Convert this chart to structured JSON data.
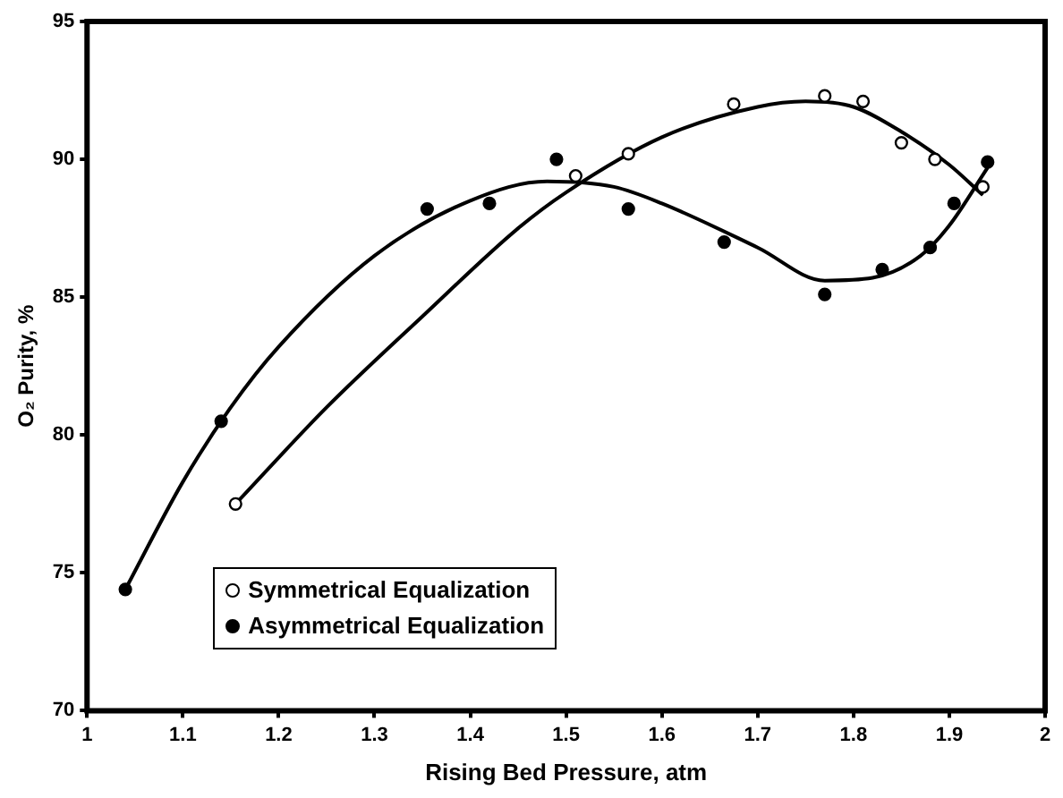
{
  "chart_data": {
    "type": "scatter",
    "xlabel": "Rising Bed Pressure, atm",
    "ylabel": "O₂ Purity, %",
    "xlim": [
      1,
      2
    ],
    "xticks": [
      1,
      1.1,
      1.2,
      1.3,
      1.4,
      1.5,
      1.6,
      1.7,
      1.8,
      1.9,
      2
    ],
    "ylim": [
      70,
      95
    ],
    "yticks": [
      70,
      75,
      80,
      85,
      90,
      95
    ],
    "grid": false,
    "legend": "bottom left",
    "marker": "circle",
    "series": [
      {
        "name": "Symmetrical Equalization",
        "color": "#ffffff",
        "x": [
          1.155,
          1.51,
          1.565,
          1.675,
          1.77,
          1.81,
          1.85,
          1.885,
          1.935
        ],
        "values": [
          77.5,
          89.4,
          90.2,
          92.0,
          92.3,
          92.1,
          90.6,
          90.0,
          89.0
        ]
      },
      {
        "name": "Asymmetrical Equalization",
        "color": "#000000",
        "x": [
          1.04,
          1.14,
          1.355,
          1.42,
          1.49,
          1.565,
          1.665,
          1.77,
          1.83,
          1.88,
          1.905,
          1.94
        ],
        "values": [
          74.4,
          80.5,
          88.2,
          88.4,
          90.0,
          88.2,
          87.0,
          85.1,
          86.0,
          86.8,
          88.4,
          89.9
        ]
      },
      {
        "type": "line",
        "color": "#000000",
        "marker": "none",
        "x": [
          1.155,
          1.25,
          1.35,
          1.45,
          1.5,
          1.6,
          1.7,
          1.75,
          1.8,
          1.85,
          1.9,
          1.935
        ],
        "values": [
          77.5,
          81.0,
          84.3,
          87.5,
          88.8,
          90.8,
          91.9,
          92.1,
          91.9,
          91.0,
          89.8,
          88.7
        ]
      },
      {
        "type": "line",
        "color": "#000000",
        "marker": "none",
        "x": [
          1.04,
          1.1,
          1.15,
          1.2,
          1.3,
          1.4,
          1.48,
          1.55,
          1.6,
          1.7,
          1.77,
          1.82,
          1.87,
          1.9,
          1.94
        ],
        "values": [
          74.4,
          78.3,
          81.0,
          83.2,
          86.5,
          88.5,
          89.2,
          89.0,
          88.4,
          86.8,
          85.6,
          85.7,
          86.5,
          87.6,
          89.7
        ]
      }
    ]
  }
}
